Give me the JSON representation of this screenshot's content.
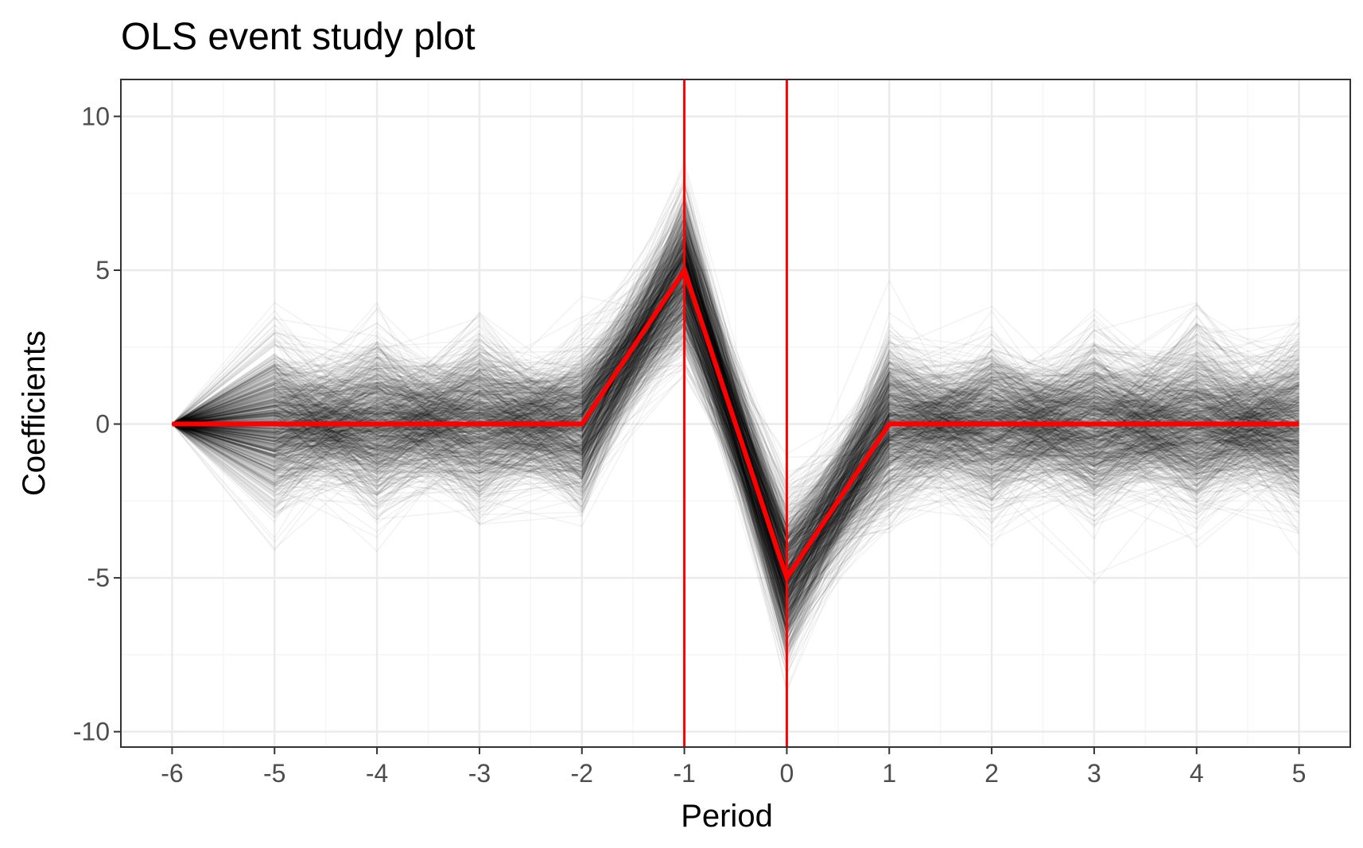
{
  "chart_data": {
    "type": "line",
    "title": "OLS event study plot",
    "xlabel": "Period",
    "ylabel": "Coefficients",
    "x": [
      -6,
      -5,
      -4,
      -3,
      -2,
      -1,
      0,
      1,
      2,
      3,
      4,
      5
    ],
    "x_tick_labels": [
      "-6",
      "-5",
      "-4",
      "-3",
      "-2",
      "-1",
      "0",
      "1",
      "2",
      "3",
      "4",
      "5"
    ],
    "xlim": [
      -6.5,
      5.5
    ],
    "y_ticks": [
      10,
      5,
      0,
      -5,
      -10
    ],
    "y_tick_labels": [
      "10",
      "5",
      "0",
      "-5",
      "-10"
    ],
    "ylim": [
      -10.5,
      11.2
    ],
    "grid": true,
    "vlines": [
      -1,
      0
    ],
    "vline_color": "#ff0000",
    "series": [
      {
        "values": [
          0,
          0,
          0,
          0,
          0,
          5,
          -5,
          0,
          0,
          0,
          0,
          0
        ],
        "color": "#ff0000"
      }
    ],
    "simulation": {
      "count": 1000,
      "color": "#000000",
      "sd": 1.25,
      "anchor_value": 0
    }
  }
}
